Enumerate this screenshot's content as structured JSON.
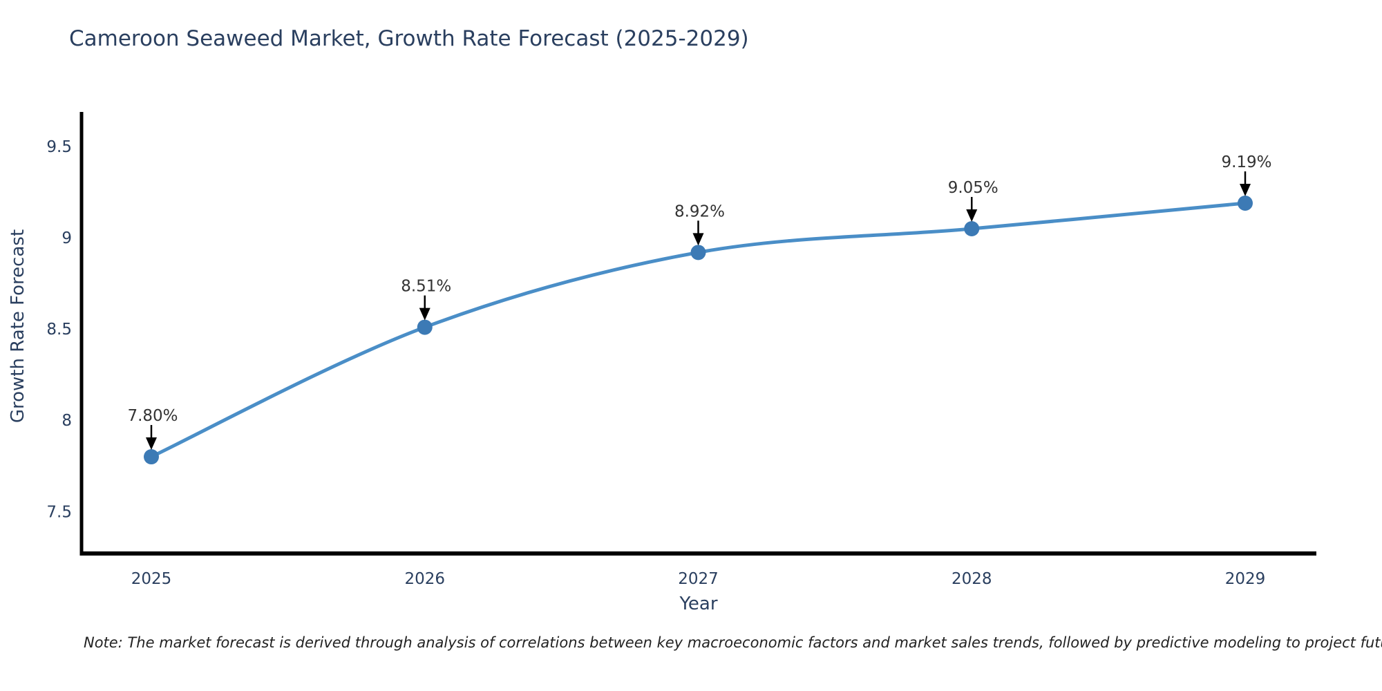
{
  "title": "Cameroon Seaweed Market, Growth Rate Forecast (2025-2029)",
  "note": "Note: The market forecast is derived through analysis of correlations between key macroeconomic factors and market sales trends, followed by predictive modeling to project future sales",
  "chart_data": {
    "type": "line",
    "title": "Cameroon Seaweed Market, Growth Rate Forecast (2025-2029)",
    "xlabel": "Year",
    "ylabel": "Growth Rate Forecast",
    "categories": [
      "2025",
      "2026",
      "2027",
      "2028",
      "2029"
    ],
    "x": [
      2025,
      2026,
      2027,
      2028,
      2029
    ],
    "series": [
      {
        "name": "Growth Rate Forecast",
        "values": [
          7.8,
          8.51,
          8.92,
          9.05,
          9.19
        ]
      }
    ],
    "point_labels": [
      "7.80%",
      "8.51%",
      "8.92%",
      "9.05%",
      "9.19%"
    ],
    "ytick_values": [
      9.5,
      9.0,
      8.5,
      8.0,
      7.5
    ],
    "ytick_labels": [
      "9.5",
      "9",
      "8.5",
      "8",
      "7.5"
    ],
    "ylim": [
      7.27,
      9.69
    ],
    "grid": false,
    "legend_position": "none",
    "line_shape": "spline",
    "colors": {
      "line": "#4a8ec7",
      "marker": "#3c7ab5",
      "axis": "#000000",
      "tick_text": "#2a3f5f",
      "annotation_text": "#333333",
      "arrow": "#000000"
    }
  }
}
